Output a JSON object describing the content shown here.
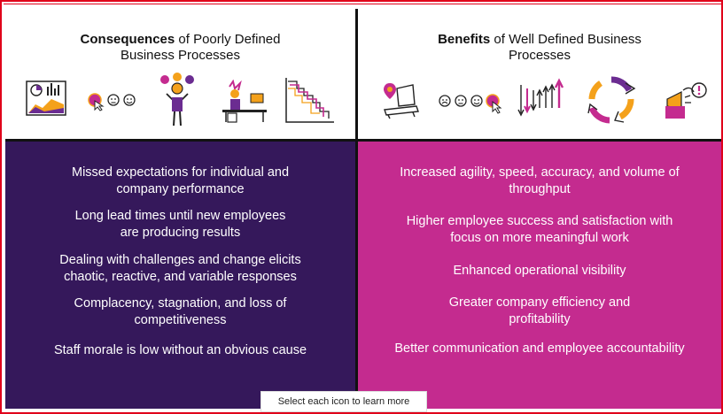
{
  "left_panel": {
    "heading_bold": "Consequences",
    "heading_rest_line1": " of Poorly Defined",
    "heading_line2": "Business Processes",
    "icons": [
      "dashboard-chart-icon",
      "cursor-sad-neutral-happy-faces-icon",
      "confused-person-icon",
      "stressed-desk-worker-icon",
      "declining-stairs-chart-icon"
    ],
    "items": [
      {
        "line1": "Missed expectations for individual and",
        "line2": "company performance"
      },
      {
        "line1": "Long lead times until new employees",
        "line2": "are producing results"
      },
      {
        "line1": "Dealing with challenges and change elicits",
        "line2": "chaotic, reactive, and variable responses"
      },
      {
        "line1": "Complacency, stagnation, and loss of",
        "line2": "competitiveness"
      },
      {
        "line1": "Staff morale is low without an obvious cause",
        "line2": ""
      }
    ]
  },
  "right_panel": {
    "heading_bold": "Benefits",
    "heading_rest_line1": " of Well Defined Business",
    "heading_line2": "Processes",
    "icons": [
      "map-marker-laptop-icon",
      "faces-cursor-icon",
      "arrows-up-down-icon",
      "cycle-arrows-icon",
      "megaphone-alert-icon"
    ],
    "items": [
      {
        "line1": "Increased agility, speed, accuracy, and volume of",
        "line2": "throughput"
      },
      {
        "line1": "Higher employee success and satisfaction with",
        "line2": "focus on more meaningful work"
      },
      {
        "line1": "Enhanced operational visibility",
        "line2": ""
      },
      {
        "line1": "Greater company efficiency and",
        "line2": "profitability"
      },
      {
        "line1": "Better communication and employee accountability",
        "line2": ""
      }
    ]
  },
  "hint": "Select each icon to learn more",
  "colors": {
    "left_body": "#35185b",
    "right_body": "#c42b8f",
    "frame_border": "#e0001a",
    "accent_orange": "#f4a11b",
    "accent_purple": "#6b2c91",
    "accent_magenta": "#c42b8f"
  }
}
